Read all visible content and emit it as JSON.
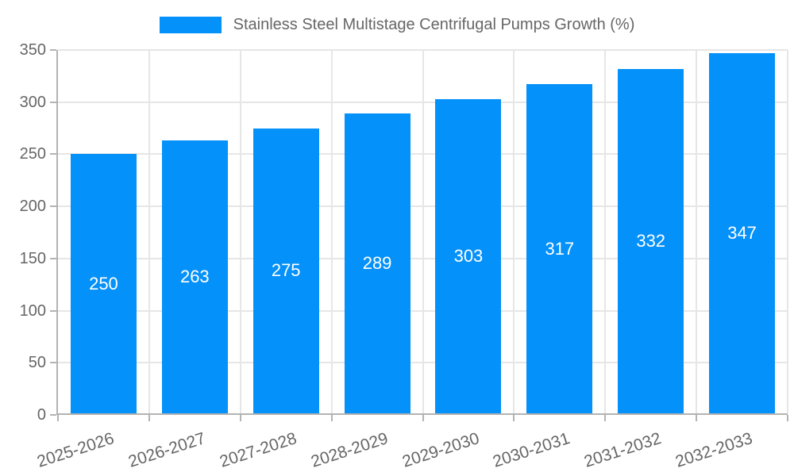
{
  "legend": {
    "label": "Stainless Steel Multistage Centrifugal Pumps Growth (%)"
  },
  "chart_data": {
    "type": "bar",
    "title": "",
    "legend_label": "Stainless Steel Multistage Centrifugal Pumps Growth (%)",
    "legend_position": "top",
    "categories": [
      "2025-2026",
      "2026-2027",
      "2027-2028",
      "2028-2029",
      "2029-2030",
      "2030-2031",
      "2031-2032",
      "2032-2033"
    ],
    "values": [
      250,
      263,
      275,
      289,
      303,
      317,
      332,
      347
    ],
    "xlabel": "",
    "ylabel": "",
    "ylim": [
      0,
      350
    ],
    "yticks": [
      0,
      50,
      100,
      150,
      200,
      250,
      300,
      350
    ],
    "grid": true,
    "value_labels": "inside-center",
    "x_tick_rotation_deg": -18,
    "colors": {
      "bar": "#0591fa",
      "value_label": "#ffffff",
      "axis_text": "#666666",
      "grid_line": "#e6e6e6",
      "axis_line": "#b3b3b3",
      "background": "#ffffff"
    }
  }
}
